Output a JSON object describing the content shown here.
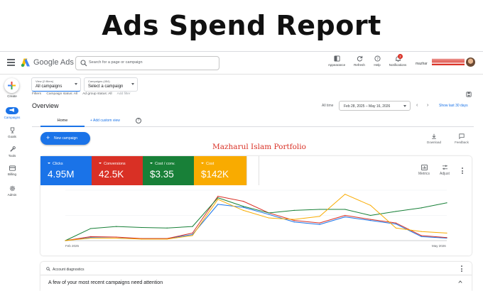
{
  "banner": {
    "title": "Ads Spend Report"
  },
  "topbar": {
    "brand": "Google Ads",
    "search_placeholder": "Search for a page or campaign",
    "actions": [
      {
        "label": "Appearance",
        "icon": "appearance-icon"
      },
      {
        "label": "Refresh",
        "icon": "refresh-icon"
      },
      {
        "label": "Help",
        "icon": "help-icon"
      },
      {
        "label": "Notifications",
        "icon": "bell-icon",
        "badge": "2"
      }
    ],
    "account_label": "mazhar"
  },
  "rail": {
    "items": [
      {
        "label": "Create",
        "icon": "plus-icon"
      },
      {
        "label": "Campaigns",
        "icon": "megaphone-icon",
        "active": true
      },
      {
        "label": "Goals",
        "icon": "trophy-icon"
      },
      {
        "label": "Tools",
        "icon": "wrench-icon"
      },
      {
        "label": "Billing",
        "icon": "credit-card-icon"
      },
      {
        "label": "Admin",
        "icon": "gear-icon"
      }
    ]
  },
  "view_picker": {
    "label": "View (2 filters)",
    "value": "All campaigns"
  },
  "campaign_picker": {
    "label": "Campaigns (454)",
    "value": "Select a campaign"
  },
  "filters": {
    "label": "Filters",
    "chips": [
      "Campaign status: All",
      "Ad group status: All"
    ],
    "add": "Add filter"
  },
  "overview": {
    "title": "Overview",
    "date_label": "All time",
    "date_range": "Feb 28, 2025 – May 16, 2026",
    "show_last": "Show last 30 days"
  },
  "tabs": {
    "home": "Home",
    "add_view": "Add custom view"
  },
  "new_campaign": "New campaign",
  "portfolio_text": "Mazharul Islam Portfolio",
  "utilities": {
    "download": "Download",
    "feedback": "Feedback",
    "metrics": "Metrics",
    "adjust": "Adjust"
  },
  "metrics": [
    {
      "label": "Clicks",
      "value": "4.95M",
      "color": "#1a73e8"
    },
    {
      "label": "Conversions",
      "value": "42.5K",
      "color": "#d93025"
    },
    {
      "label": "Cost / conv.",
      "value": "$3.35",
      "color": "#188038"
    },
    {
      "label": "Cost",
      "value": "$142K",
      "color": "#f9ab00"
    }
  ],
  "chart_data": {
    "type": "line",
    "x": [
      "Feb 2025",
      "",
      "",
      "",
      "",
      "",
      "",
      "",
      "",
      "",
      "",
      "",
      "",
      "",
      "",
      "May 2026"
    ],
    "x_tick_labels": [
      "Feb 2025",
      "May 2026"
    ],
    "series": [
      {
        "color": "#1a73e8",
        "values": [
          0,
          6,
          5,
          4,
          4,
          12,
          72,
          66,
          52,
          37,
          32,
          47,
          40,
          33,
          8,
          5
        ]
      },
      {
        "color": "#d93025",
        "values": [
          0,
          8,
          7,
          4,
          4,
          15,
          88,
          78,
          55,
          40,
          35,
          50,
          42,
          35,
          10,
          6
        ]
      },
      {
        "color": "#188038",
        "values": [
          0,
          24,
          28,
          26,
          25,
          28,
          85,
          68,
          55,
          60,
          62,
          62,
          50,
          58,
          65,
          75
        ]
      },
      {
        "color": "#f9ab00",
        "values": [
          0,
          5,
          5,
          3,
          3,
          10,
          82,
          60,
          45,
          42,
          48,
          92,
          70,
          25,
          18,
          15
        ]
      }
    ],
    "ylim": [
      0,
      100
    ],
    "grid": true
  },
  "diagnostics": {
    "title": "Account diagnostics",
    "message": "A few of your most recent campaigns need attention"
  }
}
